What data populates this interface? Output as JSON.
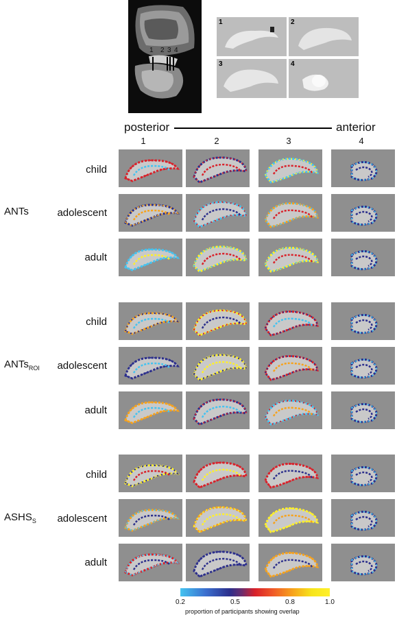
{
  "header": {
    "posterior_label": "posterior",
    "anterior_label": "anterior",
    "slice_markers": [
      "1",
      "2",
      "3",
      "4"
    ],
    "thumb_labels": [
      "1",
      "2",
      "3",
      "4"
    ],
    "column_numbers": [
      "1",
      "2",
      "3",
      "4"
    ]
  },
  "groups": [
    {
      "label": "ANTs",
      "sub": "",
      "rows": [
        "child",
        "adolescent",
        "adult"
      ]
    },
    {
      "label": "ANTs",
      "sub": "ROI",
      "rows": [
        "child",
        "adolescent",
        "adult"
      ]
    },
    {
      "label": "ASHS",
      "sub": "S",
      "rows": [
        "child",
        "adolescent",
        "adult"
      ]
    }
  ],
  "colorbar": {
    "ticks": [
      "0.2",
      "0.5",
      "0.8",
      "1.0"
    ],
    "label": "proportion of participants showing overlap",
    "colors": [
      "#44c3f0",
      "#2c2f8c",
      "#d9212a",
      "#f7a21b",
      "#fff02a"
    ]
  }
}
